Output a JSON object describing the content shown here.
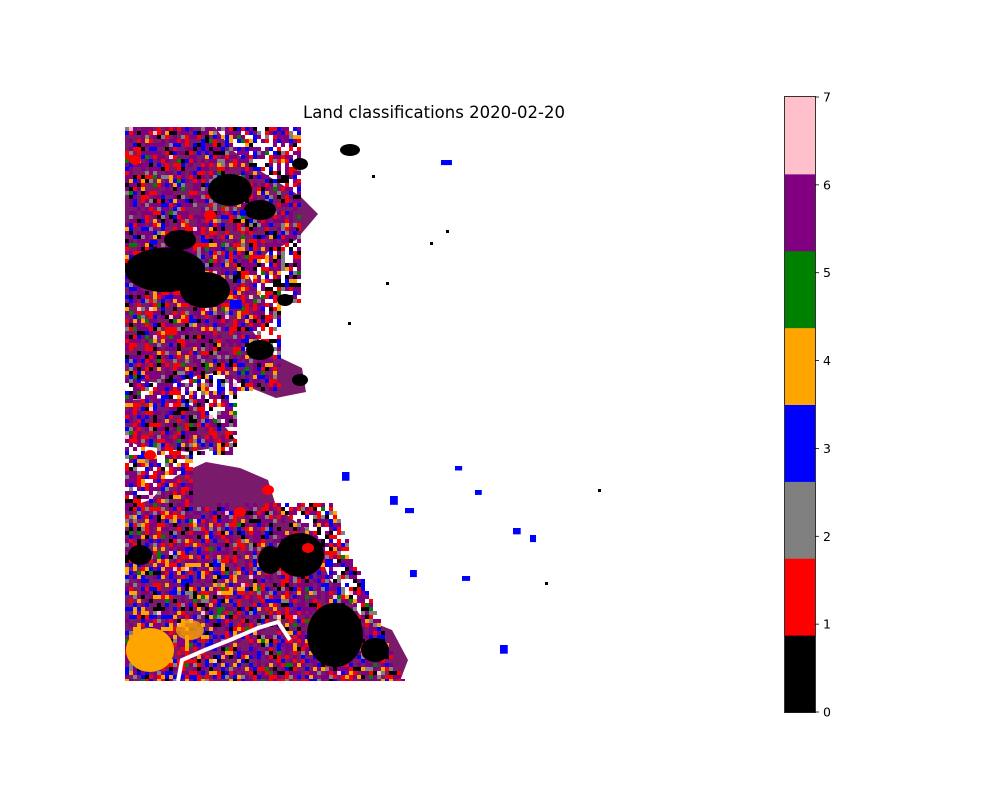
{
  "title": "Land classifications 2020-02-20",
  "colorbar": {
    "min": 0,
    "max": 7,
    "ticks": [
      "0",
      "1",
      "2",
      "3",
      "4",
      "5",
      "6",
      "7"
    ],
    "classes": [
      {
        "value": 0,
        "color": "#000000"
      },
      {
        "value": 1,
        "color": "#ff0000"
      },
      {
        "value": 2,
        "color": "#808080"
      },
      {
        "value": 3,
        "color": "#0000ff"
      },
      {
        "value": 4,
        "color": "#ffa500"
      },
      {
        "value": 5,
        "color": "#008000"
      },
      {
        "value": 6,
        "color": "#800080"
      },
      {
        "value": 7,
        "color": "#ffc0cb"
      }
    ]
  },
  "map": {
    "background": "#ffffff",
    "axes": "off"
  }
}
